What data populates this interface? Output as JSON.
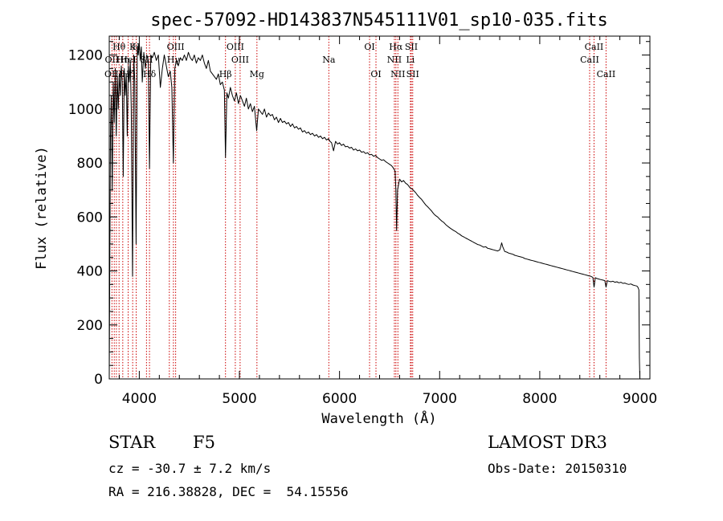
{
  "chart_data": {
    "type": "line",
    "title": "spec-57092-HD143837N545111V01_sp10-035.fits",
    "xlabel": "Wavelength (Å)",
    "ylabel": "Flux (relative)",
    "xlim": [
      3700,
      9100
    ],
    "ylim": [
      0,
      1270
    ],
    "xticks": [
      4000,
      5000,
      6000,
      7000,
      8000,
      9000
    ],
    "yticks": [
      0,
      200,
      400,
      600,
      800,
      1000,
      1200
    ],
    "grid": false,
    "series": [
      {
        "name": "spectrum",
        "x": [
          3700,
          3705,
          3712,
          3720,
          3730,
          3740,
          3750,
          3760,
          3770,
          3780,
          3790,
          3800,
          3810,
          3820,
          3830,
          3840,
          3850,
          3860,
          3870,
          3880,
          3890,
          3900,
          3910,
          3920,
          3933,
          3945,
          3955,
          3968,
          3980,
          3990,
          4000,
          4010,
          4020,
          4030,
          4045,
          4060,
          4075,
          4090,
          4102,
          4115,
          4130,
          4150,
          4170,
          4190,
          4210,
          4230,
          4250,
          4270,
          4290,
          4310,
          4325,
          4340,
          4355,
          4370,
          4390,
          4410,
          4430,
          4450,
          4470,
          4490,
          4510,
          4530,
          4550,
          4570,
          4590,
          4610,
          4630,
          4650,
          4670,
          4690,
          4710,
          4730,
          4750,
          4770,
          4790,
          4810,
          4830,
          4850,
          4861,
          4875,
          4890,
          4910,
          4930,
          4950,
          4970,
          4990,
          5010,
          5030,
          5050,
          5070,
          5090,
          5110,
          5130,
          5150,
          5172,
          5190,
          5210,
          5230,
          5250,
          5270,
          5290,
          5310,
          5330,
          5350,
          5370,
          5390,
          5410,
          5430,
          5450,
          5470,
          5490,
          5510,
          5530,
          5550,
          5570,
          5590,
          5610,
          5630,
          5650,
          5670,
          5690,
          5710,
          5730,
          5750,
          5770,
          5790,
          5810,
          5830,
          5850,
          5870,
          5890,
          5905,
          5920,
          5940,
          5960,
          5980,
          6000,
          6020,
          6040,
          6060,
          6080,
          6100,
          6120,
          6140,
          6160,
          6180,
          6200,
          6220,
          6240,
          6260,
          6280,
          6300,
          6320,
          6340,
          6360,
          6380,
          6400,
          6420,
          6440,
          6460,
          6480,
          6500,
          6520,
          6540,
          6555,
          6563,
          6570,
          6580,
          6600,
          6620,
          6640,
          6660,
          6680,
          6700,
          6720,
          6740,
          6760,
          6780,
          6800,
          6820,
          6840,
          6860,
          6880,
          6900,
          6920,
          6940,
          6960,
          6980,
          7000,
          7020,
          7040,
          7060,
          7080,
          7100,
          7120,
          7140,
          7160,
          7180,
          7200,
          7220,
          7240,
          7260,
          7280,
          7300,
          7320,
          7340,
          7360,
          7380,
          7400,
          7420,
          7440,
          7460,
          7480,
          7500,
          7520,
          7540,
          7560,
          7580,
          7600,
          7610,
          7620,
          7630,
          7650,
          7670,
          7690,
          7710,
          7730,
          7750,
          7770,
          7790,
          7810,
          7830,
          7850,
          7870,
          7890,
          7910,
          7930,
          7950,
          7970,
          7990,
          8010,
          8030,
          8050,
          8070,
          8090,
          8110,
          8130,
          8150,
          8170,
          8190,
          8210,
          8230,
          8250,
          8270,
          8290,
          8310,
          8330,
          8350,
          8370,
          8390,
          8410,
          8430,
          8450,
          8470,
          8490,
          8510,
          8530,
          8542,
          8555,
          8570,
          8590,
          8610,
          8630,
          8650,
          8662,
          8675,
          8690,
          8710,
          8730,
          8750,
          8770,
          8790,
          8810,
          8830,
          8850,
          8870,
          8890,
          8910,
          8930,
          8950,
          8970,
          8980,
          8990,
          8995,
          9000
        ],
        "y": [
          10,
          380,
          900,
          1050,
          700,
          1100,
          950,
          1150,
          900,
          1120,
          1000,
          1130,
          1050,
          1160,
          1100,
          750,
          1150,
          1050,
          1130,
          900,
          1160,
          1100,
          1180,
          1000,
          380,
          1200,
          1100,
          500,
          1230,
          1200,
          1240,
          1180,
          1230,
          1100,
          1210,
          1150,
          1200,
          1180,
          780,
          1200,
          1190,
          1210,
          1180,
          1200,
          1080,
          1150,
          1200,
          1160,
          1120,
          1140,
          1080,
          800,
          1150,
          1180,
          1160,
          1190,
          1180,
          1200,
          1180,
          1210,
          1190,
          1180,
          1200,
          1170,
          1190,
          1180,
          1200,
          1170,
          1150,
          1180,
          1140,
          1130,
          1120,
          1110,
          1130,
          1090,
          1100,
          1070,
          820,
          1060,
          1040,
          1080,
          1050,
          1030,
          1060,
          1020,
          1050,
          1030,
          1010,
          1040,
          1000,
          1020,
          990,
          1010,
          920,
          1000,
          990,
          980,
          1000,
          970,
          985,
          975,
          980,
          960,
          970,
          950,
          965,
          950,
          955,
          945,
          950,
          935,
          945,
          930,
          935,
          925,
          930,
          915,
          920,
          910,
          915,
          905,
          910,
          900,
          905,
          895,
          900,
          890,
          895,
          885,
          890,
          880,
          875,
          845,
          880,
          870,
          875,
          865,
          870,
          860,
          862,
          855,
          858,
          848,
          852,
          845,
          848,
          840,
          842,
          835,
          838,
          830,
          832,
          825,
          828,
          820,
          815,
          810,
          812,
          805,
          800,
          795,
          790,
          780,
          770,
          700,
          550,
          700,
          740,
          730,
          735,
          725,
          720,
          710,
          705,
          698,
          690,
          680,
          672,
          665,
          655,
          645,
          638,
          630,
          622,
          612,
          605,
          600,
          592,
          585,
          580,
          572,
          566,
          560,
          555,
          550,
          546,
          540,
          536,
          530,
          526,
          522,
          518,
          514,
          510,
          506,
          502,
          498,
          496,
          492,
          488,
          490,
          484,
          482,
          480,
          478,
          476,
          474,
          478,
          490,
          504,
          490,
          472,
          470,
          466,
          464,
          462,
          458,
          456,
          454,
          452,
          450,
          446,
          444,
          442,
          440,
          438,
          436,
          434,
          432,
          430,
          428,
          426,
          424,
          422,
          420,
          418,
          416,
          414,
          412,
          410,
          408,
          406,
          404,
          402,
          400,
          398,
          396,
          394,
          392,
          390,
          388,
          386,
          384,
          382,
          380,
          376,
          340,
          375,
          372,
          370,
          368,
          366,
          364,
          340,
          364,
          362,
          360,
          362,
          358,
          360,
          356,
          358,
          354,
          355,
          352,
          350,
          352,
          348,
          346,
          344,
          340,
          330,
          80,
          0
        ]
      }
    ],
    "line_labels": [
      {
        "label": "Hθ",
        "wavelength": 3798,
        "row": 1
      },
      {
        "label": "OII",
        "wavelength": 3727,
        "row": 2
      },
      {
        "label": "OIII",
        "wavelength": 3740,
        "row": 3
      },
      {
        "label": "K",
        "wavelength": 3934,
        "row": 1
      },
      {
        "label": "H",
        "wavelength": 3969,
        "row": 1
      },
      {
        "label": "Hη",
        "wavelength": 3835,
        "row": 2
      },
      {
        "label": "HeI",
        "wavelength": 3889,
        "row": 2
      },
      {
        "label": "SII",
        "wavelength": 4072,
        "row": 2
      },
      {
        "label": "Hζ",
        "wavelength": 3889,
        "row": 3
      },
      {
        "label": "OIII",
        "wavelength": 4363,
        "row": 1
      },
      {
        "label": "Hγ",
        "wavelength": 4341,
        "row": 2
      },
      {
        "label": "Hδ",
        "wavelength": 4102,
        "row": 3
      },
      {
        "label": "OIII",
        "wavelength": 4959,
        "row": 1
      },
      {
        "label": "OIII",
        "wavelength": 5007,
        "row": 2
      },
      {
        "label": "Hβ",
        "wavelength": 4861,
        "row": 3
      },
      {
        "label": "Mg",
        "wavelength": 5175,
        "row": 3
      },
      {
        "label": "Na",
        "wavelength": 5893,
        "row": 2
      },
      {
        "label": "OI",
        "wavelength": 6300,
        "row": 1
      },
      {
        "label": "OI",
        "wavelength": 6364,
        "row": 3
      },
      {
        "label": "Hα",
        "wavelength": 6563,
        "row": 1
      },
      {
        "label": "NII",
        "wavelength": 6548,
        "row": 2
      },
      {
        "label": "NII",
        "wavelength": 6583,
        "row": 3
      },
      {
        "label": "SII",
        "wavelength": 6717,
        "row": 1
      },
      {
        "label": "Li",
        "wavelength": 6708,
        "row": 2
      },
      {
        "label": "SII",
        "wavelength": 6731,
        "row": 3
      },
      {
        "label": "CaII",
        "wavelength": 8542,
        "row": 1
      },
      {
        "label": "CaII",
        "wavelength": 8498,
        "row": 2
      },
      {
        "label": "CaII",
        "wavelength": 8662,
        "row": 3
      }
    ],
    "marker_lines": [
      3727,
      3750,
      3771,
      3798,
      3835,
      3889,
      3934,
      3969,
      4072,
      4102,
      4300,
      4341,
      4363,
      4861,
      4959,
      5007,
      5175,
      5893,
      6300,
      6364,
      6548,
      6563,
      6583,
      6708,
      6717,
      6731,
      8498,
      8542,
      8662
    ]
  },
  "info": {
    "object_class": "STAR",
    "subclass": "F5",
    "survey": "LAMOST DR3",
    "cz": "cz = -30.7 ± 7.2 km/s",
    "obs_date": "Obs-Date: 20150310",
    "coords": "RA = 216.38828, DEC =  54.15556"
  },
  "colors": {
    "spectrum": "#000000",
    "marker": "#cc0000",
    "axes": "#000000"
  }
}
